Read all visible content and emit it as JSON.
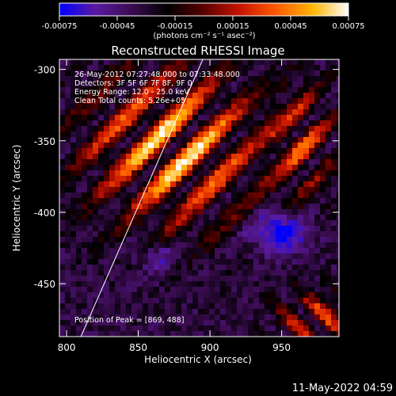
{
  "chart_data": {
    "type": "heatmap",
    "title": "Reconstructed RHESSI Image",
    "xlabel": "Heliocentric X (arcsec)",
    "ylabel": "Heliocentric Y (arcsec)",
    "xlim": [
      795,
      990
    ],
    "ylim": [
      -487,
      -293
    ],
    "x_ticks": [
      800,
      850,
      900,
      950
    ],
    "y_ticks": [
      -300,
      -350,
      -400,
      -450
    ],
    "colorbar": {
      "range": [
        -0.00075,
        0.00075
      ],
      "ticks": [
        "-0.00075",
        "-0.00045",
        "-0.00015",
        "0.00015",
        "0.00045",
        "0.00075"
      ],
      "unit_label": "(photons cm⁻² s⁻¹ asec⁻²)",
      "colormap": [
        "#0000ff",
        "#5a1aa0",
        "#3a0c50",
        "#000000",
        "#5a0000",
        "#c81400",
        "#ff5a00",
        "#ffb400",
        "#ffffff"
      ]
    },
    "annotations": [
      "26-May-2012 07:27:48.000 to 07:33:48.000",
      "Detectors: 3F 5F 6F 7F 8F, 9F 0",
      "Energy Range: 12.0 - 25.0 keV",
      "Clean    Total counts: 5.26e+05"
    ],
    "peak_label": "Position of Peak = [869, 488]",
    "limb_line": {
      "x": [
        810,
        895
      ],
      "y": [
        -487,
        -293
      ]
    },
    "grid": false
  },
  "footer_timestamp": "11-May-2022 04:59"
}
